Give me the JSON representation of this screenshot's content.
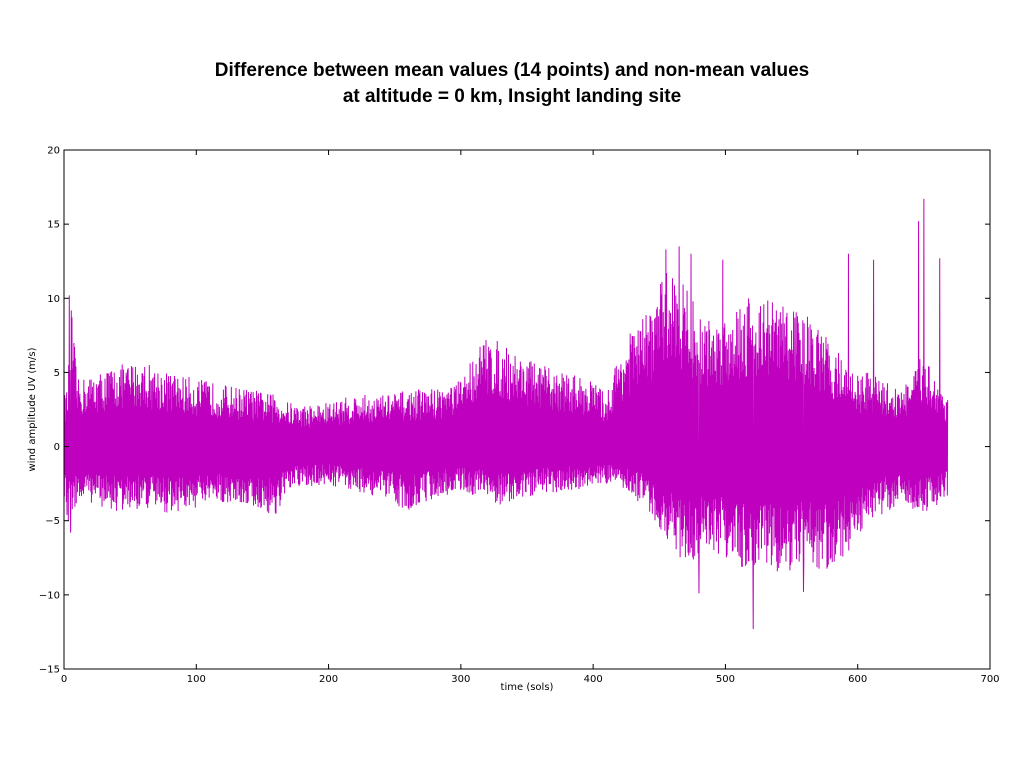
{
  "chart_data": {
    "type": "line",
    "title": "Difference between mean values (14 points) and non-mean values at altitude = 0 km, Insight landing site",
    "xlabel": "time (sols)",
    "ylabel": "wind amplitude UV (m/s)",
    "xlim": [
      0,
      700
    ],
    "ylim": [
      -15,
      20
    ],
    "xticks": [
      0,
      100,
      200,
      300,
      400,
      500,
      600,
      700
    ],
    "yticks": [
      -15,
      -10,
      -5,
      0,
      5,
      10,
      15,
      20
    ],
    "grid": false,
    "legend": "none",
    "series": [
      {
        "color": "#bf00bf",
        "x_range": [
          0,
          668
        ],
        "envelope_x": [
          0,
          3,
          5,
          10,
          20,
          40,
          60,
          80,
          100,
          120,
          140,
          160,
          170,
          180,
          200,
          220,
          240,
          260,
          280,
          300,
          310,
          320,
          330,
          340,
          360,
          380,
          400,
          410,
          420,
          430,
          440,
          450,
          460,
          470,
          480,
          490,
          500,
          510,
          520,
          530,
          540,
          550,
          560,
          570,
          580,
          590,
          600,
          610,
          620,
          630,
          640,
          650,
          660,
          668
        ],
        "envelope_upper": [
          3.5,
          4.0,
          10.2,
          4.5,
          4.8,
          5.5,
          5.8,
          5.0,
          4.6,
          4.2,
          3.9,
          3.5,
          3.0,
          2.8,
          3.0,
          3.5,
          3.5,
          3.8,
          4.0,
          4.5,
          6.5,
          7.5,
          7.0,
          6.5,
          5.5,
          5.0,
          4.5,
          3.5,
          6.5,
          8.0,
          9.0,
          11.0,
          12.5,
          11.0,
          9.0,
          8.5,
          9.0,
          10.0,
          10.5,
          10.0,
          10.0,
          9.5,
          9.0,
          8.0,
          7.0,
          6.0,
          5.0,
          5.0,
          4.5,
          4.0,
          4.5,
          6.5,
          4.5,
          3.5
        ],
        "envelope_lower": [
          -3.5,
          -5.8,
          -4.5,
          -4.0,
          -3.8,
          -4.5,
          -4.2,
          -4.5,
          -4.2,
          -3.8,
          -4.0,
          -4.8,
          -3.0,
          -2.8,
          -2.6,
          -3.0,
          -3.5,
          -4.3,
          -3.5,
          -3.0,
          -3.3,
          -3.5,
          -4.0,
          -3.8,
          -3.2,
          -3.0,
          -2.8,
          -2.5,
          -2.8,
          -3.5,
          -4.0,
          -5.5,
          -7.0,
          -8.0,
          -7.5,
          -7.0,
          -7.5,
          -8.0,
          -8.5,
          -8.0,
          -8.5,
          -8.5,
          -8.0,
          -8.5,
          -8.5,
          -7.5,
          -6.0,
          -5.0,
          -4.5,
          -4.0,
          -4.5,
          -4.5,
          -4.0,
          -3.5
        ],
        "spikes": [
          {
            "x": 4,
            "y": 10.2
          },
          {
            "x": 5,
            "y": -5.8
          },
          {
            "x": 455,
            "y": 13.3
          },
          {
            "x": 465,
            "y": 13.5
          },
          {
            "x": 474,
            "y": 13.0
          },
          {
            "x": 480,
            "y": -9.9
          },
          {
            "x": 498,
            "y": 12.6
          },
          {
            "x": 521,
            "y": -12.3
          },
          {
            "x": 559,
            "y": -9.8
          },
          {
            "x": 593,
            "y": 13.0
          },
          {
            "x": 612,
            "y": 12.6
          },
          {
            "x": 646,
            "y": 15.2
          },
          {
            "x": 650,
            "y": 16.7
          },
          {
            "x": 662,
            "y": 12.7
          }
        ]
      }
    ]
  }
}
